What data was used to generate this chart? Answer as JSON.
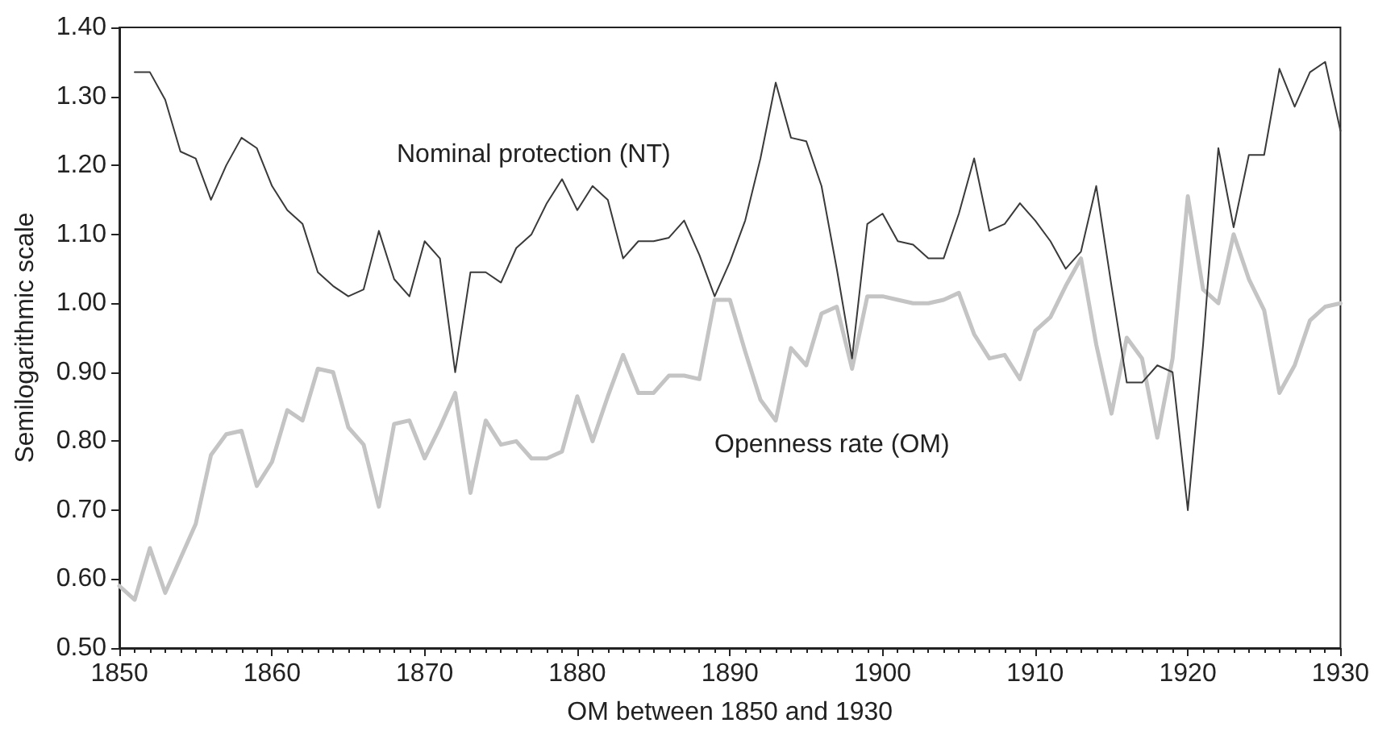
{
  "chart_data": {
    "type": "line",
    "xlabel": "OM between 1850 and 1930",
    "ylabel": "Semilogarithmic scale",
    "x": [
      1850,
      1851,
      1852,
      1853,
      1854,
      1855,
      1856,
      1857,
      1858,
      1859,
      1860,
      1861,
      1862,
      1863,
      1864,
      1865,
      1866,
      1867,
      1868,
      1869,
      1870,
      1871,
      1872,
      1873,
      1874,
      1875,
      1876,
      1877,
      1878,
      1879,
      1880,
      1881,
      1882,
      1883,
      1884,
      1885,
      1886,
      1887,
      1888,
      1889,
      1890,
      1891,
      1892,
      1893,
      1894,
      1895,
      1896,
      1897,
      1898,
      1899,
      1900,
      1901,
      1902,
      1903,
      1904,
      1905,
      1906,
      1907,
      1908,
      1909,
      1910,
      1911,
      1912,
      1913,
      1914,
      1915,
      1916,
      1917,
      1918,
      1919,
      1920,
      1921,
      1922,
      1923,
      1924,
      1925,
      1926,
      1927,
      1928,
      1929,
      1930
    ],
    "series": [
      {
        "name": "Nominal protection (NT)",
        "color": "#3a3a3a",
        "values": [
          null,
          1.335,
          1.335,
          1.295,
          1.22,
          1.21,
          1.15,
          1.2,
          1.24,
          1.225,
          1.17,
          1.135,
          1.115,
          1.045,
          1.025,
          1.01,
          1.02,
          1.105,
          1.035,
          1.01,
          1.09,
          1.065,
          0.9,
          1.045,
          1.045,
          1.03,
          1.08,
          1.1,
          1.145,
          1.18,
          1.135,
          1.17,
          1.15,
          1.065,
          1.09,
          1.09,
          1.095,
          1.12,
          1.07,
          1.01,
          1.06,
          1.12,
          1.21,
          1.32,
          1.24,
          1.235,
          1.17,
          1.05,
          0.92,
          1.115,
          1.13,
          1.09,
          1.085,
          1.065,
          1.065,
          1.13,
          1.21,
          1.105,
          1.115,
          1.145,
          1.12,
          1.09,
          1.05,
          1.075,
          1.17,
          1.025,
          0.885,
          0.885,
          0.91,
          0.9,
          0.7,
          0.94,
          1.225,
          1.11,
          1.215,
          1.215,
          1.34,
          1.285,
          1.335,
          1.35,
          1.25
        ]
      },
      {
        "name": "Openness rate (OM)",
        "color": "#c4c4c4",
        "values": [
          0.59,
          0.57,
          0.645,
          0.58,
          0.63,
          0.68,
          0.78,
          0.81,
          0.815,
          0.735,
          0.77,
          0.845,
          0.83,
          0.905,
          0.9,
          0.82,
          0.795,
          0.705,
          0.825,
          0.83,
          0.775,
          0.82,
          0.87,
          0.725,
          0.83,
          0.795,
          0.8,
          0.775,
          0.775,
          0.785,
          0.865,
          0.8,
          0.865,
          0.925,
          0.87,
          0.87,
          0.895,
          0.895,
          0.89,
          1.005,
          1.005,
          0.93,
          0.86,
          0.83,
          0.935,
          0.91,
          0.985,
          0.995,
          0.905,
          1.01,
          1.01,
          1.005,
          1.0,
          1.0,
          1.005,
          1.015,
          0.955,
          0.92,
          0.925,
          0.89,
          0.96,
          0.98,
          1.025,
          1.065,
          0.94,
          0.84,
          0.95,
          0.92,
          0.805,
          0.92,
          1.155,
          1.02,
          1.0,
          1.1,
          1.035,
          0.99,
          0.87,
          0.91,
          0.975,
          0.995,
          1.0
        ]
      }
    ],
    "xlim": [
      1850,
      1930
    ],
    "xticks": [
      1850,
      1860,
      1870,
      1880,
      1890,
      1900,
      1910,
      1920,
      1930
    ],
    "ylim": [
      0.5,
      1.4
    ],
    "yticks": [
      {
        "value": 0.5,
        "label": "0.50"
      },
      {
        "value": 0.6,
        "label": "0.60"
      },
      {
        "value": 0.7,
        "label": "0.70"
      },
      {
        "value": 0.8,
        "label": "0.80"
      },
      {
        "value": 0.9,
        "label": "0.90"
      },
      {
        "value": 1.0,
        "label": "1.00"
      },
      {
        "value": 1.1,
        "label": "1.10"
      },
      {
        "value": 1.2,
        "label": "1.20"
      },
      {
        "value": 1.3,
        "label": "1.30"
      },
      {
        "value": 1.4,
        "label": "1.40"
      }
    ],
    "grid": false,
    "legend": false,
    "marker": "none",
    "line_style": "solid"
  }
}
